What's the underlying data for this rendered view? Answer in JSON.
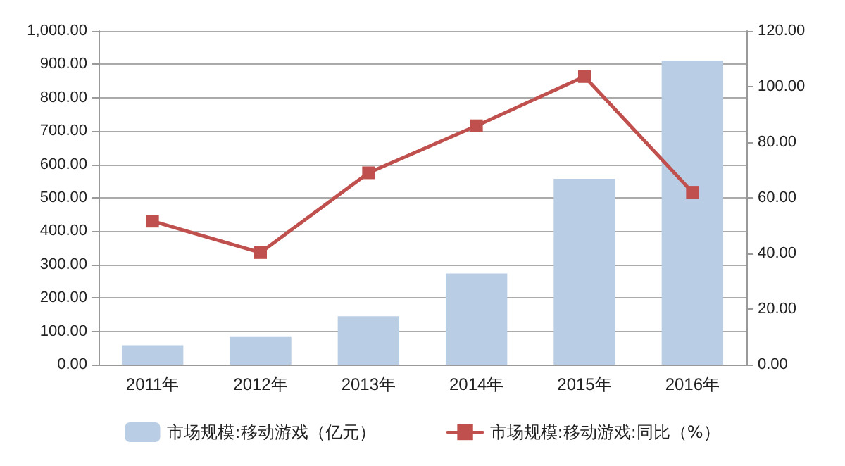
{
  "chart_data": {
    "type": "bar",
    "categories": [
      "2011年",
      "2012年",
      "2013年",
      "2014年",
      "2015年",
      "2016年"
    ],
    "series": [
      {
        "name": "市场规模:移动游戏（亿元）",
        "color": "#b9cde5",
        "values": [
          58,
          83,
          145,
          273,
          557,
          911
        ]
      },
      {
        "name": "市场规模:移动游戏:同比（%）",
        "type": "line",
        "axis": "y2",
        "color": "#c0504d",
        "values": [
          51.6,
          40.3,
          69.0,
          85.9,
          103.6,
          62.0
        ]
      }
    ],
    "ylim": [
      0,
      1000
    ],
    "yticks": [
      {
        "value": 0,
        "label": "0.00"
      },
      {
        "value": 100,
        "label": "100.00"
      },
      {
        "value": 200,
        "label": "200.00"
      },
      {
        "value": 300,
        "label": "300.00"
      },
      {
        "value": 400,
        "label": "400.00"
      },
      {
        "value": 500,
        "label": "500.00"
      },
      {
        "value": 600,
        "label": "600.00"
      },
      {
        "value": 700,
        "label": "700.00"
      },
      {
        "value": 800,
        "label": "800.00"
      },
      {
        "value": 900,
        "label": "900.00"
      },
      {
        "value": 1000,
        "label": "1,000.00"
      }
    ],
    "y2lim": [
      0,
      120
    ],
    "y2ticks": [
      {
        "value": 0,
        "label": "0.00"
      },
      {
        "value": 20,
        "label": "20.00"
      },
      {
        "value": 40,
        "label": "40.00"
      },
      {
        "value": 60,
        "label": "60.00"
      },
      {
        "value": 80,
        "label": "80.00"
      },
      {
        "value": 100,
        "label": "100.00"
      },
      {
        "value": 120,
        "label": "120.00"
      }
    ],
    "grid": "y",
    "legend": "bottom",
    "marker": "square"
  }
}
